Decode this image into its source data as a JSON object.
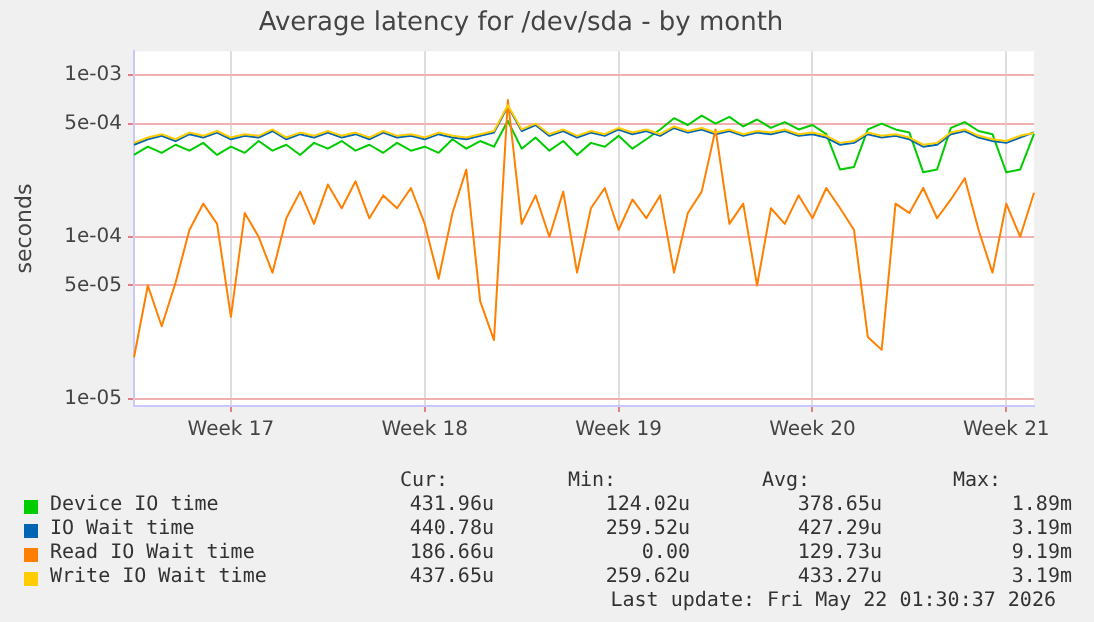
{
  "chart_data": {
    "type": "line",
    "title": "Average latency for /dev/sda - by month",
    "ylabel": "seconds",
    "log": "y",
    "grid": true,
    "legend": "bottom",
    "marker": "none",
    "line_style": "solid",
    "categories": [
      null,
      null,
      null,
      null,
      null,
      null,
      null,
      "Week 17",
      null,
      null,
      null,
      null,
      null,
      null,
      null,
      null,
      null,
      null,
      null,
      null,
      null,
      "Week 18",
      null,
      null,
      null,
      null,
      null,
      null,
      null,
      null,
      null,
      null,
      null,
      null,
      null,
      "Week 19",
      null,
      null,
      null,
      null,
      null,
      null,
      null,
      null,
      null,
      null,
      null,
      null,
      null,
      "Week 20",
      null,
      null,
      null,
      null,
      null,
      null,
      null,
      null,
      null,
      null,
      null,
      null,
      null,
      "Week 21",
      null,
      null
    ],
    "ylim": [
      9e-06,
      0.0014
    ],
    "yticks": [
      {
        "value": 1e-05,
        "label": "1e-05"
      },
      {
        "value": 5e-05,
        "label": "5e-05"
      },
      {
        "value": 0.0001,
        "label": "1e-04"
      },
      {
        "value": 0.0005,
        "label": "5e-04"
      },
      {
        "value": 0.001,
        "label": "1e-03"
      }
    ],
    "series": [
      {
        "name": "Device IO time",
        "color": "#00cc00",
        "values": [
          0.00032,
          0.00036,
          0.00033,
          0.00037,
          0.00034,
          0.00038,
          0.00032,
          0.00036,
          0.00033,
          0.00039,
          0.00034,
          0.00037,
          0.00032,
          0.00038,
          0.00035,
          0.00039,
          0.00034,
          0.00037,
          0.00033,
          0.00038,
          0.00034,
          0.00036,
          0.00033,
          0.0004,
          0.00035,
          0.00039,
          0.00036,
          0.00052,
          0.00035,
          0.00041,
          0.00034,
          0.00039,
          0.00032,
          0.00038,
          0.00036,
          0.00042,
          0.00035,
          0.0004,
          0.00046,
          0.00054,
          0.00049,
          0.00056,
          0.0005,
          0.00055,
          0.00048,
          0.00053,
          0.00047,
          0.00051,
          0.00046,
          0.00049,
          0.00043,
          0.00026,
          0.00027,
          0.00046,
          0.0005,
          0.00046,
          0.00044,
          0.00025,
          0.00026,
          0.00047,
          0.00051,
          0.00045,
          0.00043,
          0.00025,
          0.00026,
          0.000432
        ]
      },
      {
        "name": "IO Wait time",
        "color": "#0066b3",
        "values": [
          0.00037,
          0.0004,
          0.00042,
          0.00039,
          0.00043,
          0.00041,
          0.00044,
          0.0004,
          0.00042,
          0.00041,
          0.00045,
          0.0004,
          0.00043,
          0.00041,
          0.00044,
          0.00041,
          0.00043,
          0.0004,
          0.00044,
          0.00041,
          0.00042,
          0.0004,
          0.00043,
          0.00041,
          0.0004,
          0.00042,
          0.00044,
          0.00064,
          0.00045,
          0.00049,
          0.00042,
          0.00045,
          0.00041,
          0.00044,
          0.00042,
          0.00046,
          0.00043,
          0.00045,
          0.00042,
          0.00047,
          0.00044,
          0.00046,
          0.00043,
          0.00045,
          0.00042,
          0.00044,
          0.00043,
          0.00045,
          0.00042,
          0.00043,
          0.00041,
          0.00037,
          0.00038,
          0.00043,
          0.00041,
          0.00042,
          0.0004,
          0.00036,
          0.00037,
          0.00043,
          0.00045,
          0.00041,
          0.00039,
          0.00038,
          0.00041,
          0.000441
        ]
      },
      {
        "name": "Read IO Wait time",
        "color": "#ff8000",
        "values": [
          1.8e-05,
          5e-05,
          2.8e-05,
          5.2e-05,
          0.00011,
          0.00016,
          0.00012,
          3.2e-05,
          0.00014,
          0.0001,
          6e-05,
          0.00013,
          0.00019,
          0.00012,
          0.00021,
          0.00015,
          0.00022,
          0.00013,
          0.00018,
          0.00015,
          0.0002,
          0.00012,
          5.5e-05,
          0.00014,
          0.00026,
          4e-05,
          2.3e-05,
          0.0007,
          0.00012,
          0.00018,
          0.0001,
          0.00019,
          6e-05,
          0.00015,
          0.0002,
          0.00011,
          0.00017,
          0.00013,
          0.00018,
          6e-05,
          0.00014,
          0.00019,
          0.00046,
          0.00012,
          0.00016,
          5e-05,
          0.00015,
          0.00012,
          0.00018,
          0.00013,
          0.0002,
          0.00015,
          0.00011,
          2.4e-05,
          2e-05,
          0.00016,
          0.00014,
          0.0002,
          0.00013,
          0.00017,
          0.00023,
          0.00011,
          6e-05,
          0.00016,
          0.0001,
          0.000187
        ]
      },
      {
        "name": "Write IO Wait time",
        "color": "#ffcc00",
        "values": [
          0.00038,
          0.00041,
          0.00043,
          0.0004,
          0.00044,
          0.00042,
          0.00045,
          0.00041,
          0.00043,
          0.00042,
          0.00046,
          0.00041,
          0.00044,
          0.00042,
          0.00045,
          0.00042,
          0.00044,
          0.00041,
          0.00045,
          0.00042,
          0.00043,
          0.00041,
          0.00044,
          0.00042,
          0.00041,
          0.00043,
          0.00045,
          0.00065,
          0.00046,
          0.0005,
          0.00043,
          0.00046,
          0.00042,
          0.00045,
          0.00043,
          0.00047,
          0.00044,
          0.00046,
          0.00043,
          0.00048,
          0.00045,
          0.00047,
          0.00044,
          0.00046,
          0.00043,
          0.00045,
          0.00044,
          0.00046,
          0.00043,
          0.00044,
          0.00042,
          0.00038,
          0.00039,
          0.00044,
          0.00042,
          0.00043,
          0.00041,
          0.00037,
          0.00038,
          0.00044,
          0.00046,
          0.00042,
          0.0004,
          0.00039,
          0.00042,
          0.000438
        ]
      }
    ],
    "annotations": [
      "Cur:",
      "Min:",
      "Avg:",
      "Max:",
      "431.96u",
      "124.02u",
      "378.65u",
      "1.89m",
      "440.78u",
      "259.52u",
      "427.29u",
      "3.19m",
      "186.66u",
      "0.00",
      "129.73u",
      "9.19m",
      "437.65u",
      "259.62u",
      "433.27u",
      "3.19m",
      "Last update: Fri May 22 01:30:37 2026"
    ]
  }
}
